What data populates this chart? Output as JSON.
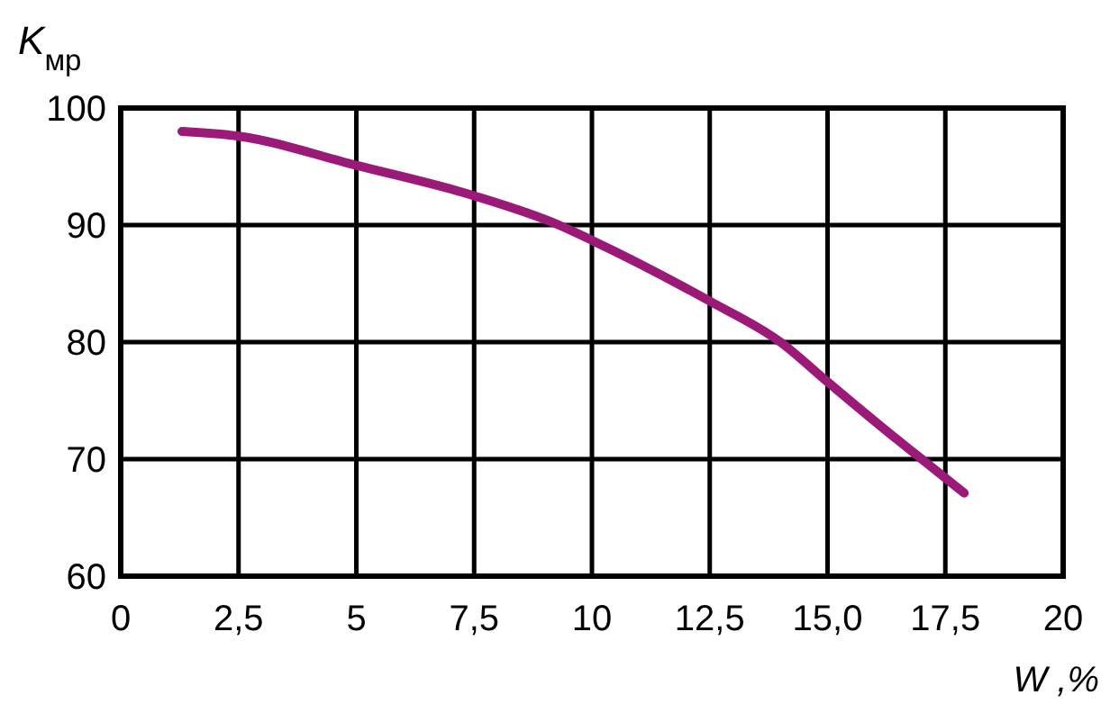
{
  "chart_data": {
    "type": "line",
    "xlabel": "W ,%",
    "ylabel": "K$_{мр}$",
    "xlim": [
      0,
      20
    ],
    "ylim": [
      60,
      100
    ],
    "xticks": [
      0,
      {
        "value": 2.5,
        "label": "2,5"
      },
      5,
      {
        "value": 7.5,
        "label": "7,5"
      },
      10,
      {
        "value": 12.5,
        "label": "12,5"
      },
      {
        "value": 15,
        "label": "15,0"
      },
      {
        "value": 17.5,
        "label": "17,5"
      },
      20
    ],
    "yticks": [
      60,
      70,
      80,
      90,
      100
    ],
    "grid": true,
    "series": [
      {
        "color": "#9b1a78",
        "x": [
          1.3,
          2.5,
          5,
          7.5,
          9.3,
          10,
          12.5,
          14,
          15,
          16.5,
          17,
          17.9
        ],
        "values": [
          98.0,
          97.6,
          95.1,
          92.5,
          90,
          88.7,
          83.5,
          80,
          76.6,
          71.6,
          70,
          67.1
        ]
      }
    ]
  }
}
